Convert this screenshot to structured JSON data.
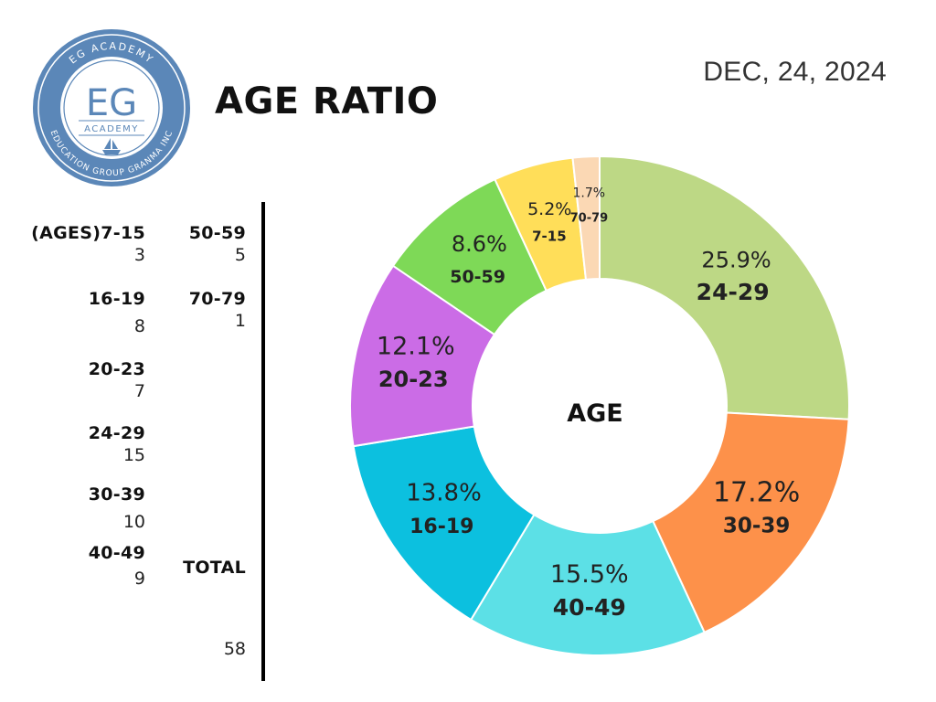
{
  "header": {
    "title": "AGE RATIO",
    "date": "DEC, 24, 2024"
  },
  "logo": {
    "top_text": "EG ACADEMY",
    "monogram": "EG",
    "subtitle": "ACADEMY",
    "bottom_text": "EDUCATION GROUP GRANMA INC"
  },
  "legend": {
    "items": [
      {
        "label": "(AGES)7-15",
        "value": "3"
      },
      {
        "label": "16-19",
        "value": "8"
      },
      {
        "label": "20-23",
        "value": "7"
      },
      {
        "label": "24-29",
        "value": "15"
      },
      {
        "label": "30-39",
        "value": "10"
      },
      {
        "label": "40-49",
        "value": "9"
      },
      {
        "label": "50-59",
        "value": "5"
      },
      {
        "label": "70-79",
        "value": "1"
      }
    ],
    "total_label": "TOTAL",
    "total_value": "58"
  },
  "chart_data": {
    "type": "pie",
    "title": "AGE RATIO",
    "center_label": "AGE",
    "slices": [
      {
        "label": "24-29",
        "percent_label": "25.9%",
        "value": 15,
        "color": "#bdd885"
      },
      {
        "label": "30-39",
        "percent_label": "17.2%",
        "value": 10,
        "color": "#fd914a"
      },
      {
        "label": "40-49",
        "percent_label": "15.5%",
        "value": 9,
        "color": "#5ce0e6"
      },
      {
        "label": "16-19",
        "percent_label": "13.8%",
        "value": 8,
        "color": "#0cc0df"
      },
      {
        "label": "20-23",
        "percent_label": "12.1%",
        "value": 7,
        "color": "#cb6ce6"
      },
      {
        "label": "50-59",
        "percent_label": "8.6%",
        "value": 5,
        "color": "#7ed957"
      },
      {
        "label": "7-15",
        "percent_label": "5.2%",
        "value": 3,
        "color": "#ffde59"
      },
      {
        "label": "70-79",
        "percent_label": "1.7%",
        "value": 1,
        "color": "#fbd8b4"
      }
    ]
  },
  "colors": {
    "logo_blue": "#5b87b8",
    "text": "#111111"
  }
}
